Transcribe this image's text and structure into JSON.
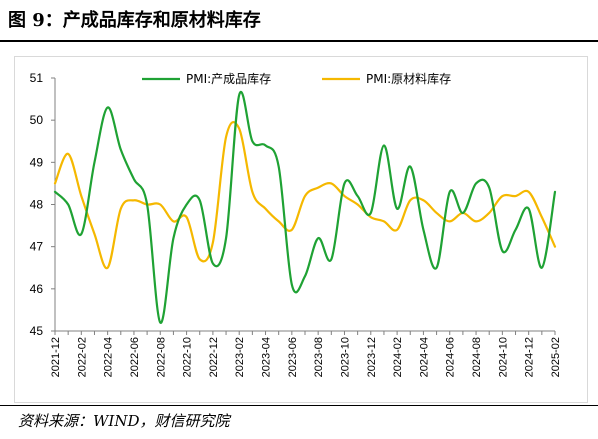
{
  "header": {
    "title": "图 9：产成品库存和原材料库存"
  },
  "footer": {
    "source": "资料来源：WIND，财信研究院"
  },
  "colors": {
    "finished": "#1fa234",
    "raw": "#f5b800",
    "axis": "#808080",
    "frame": "#d9d9d9"
  },
  "chart_data": {
    "type": "line",
    "title": "",
    "xlabel": "",
    "ylabel": "",
    "ylim": [
      45,
      51
    ],
    "yticks": [
      45,
      46,
      47,
      48,
      49,
      50,
      51
    ],
    "grid": false,
    "legend_position": "top",
    "categories": [
      "2021-12",
      "2022-01",
      "2022-02",
      "2022-03",
      "2022-04",
      "2022-05",
      "2022-06",
      "2022-07",
      "2022-08",
      "2022-09",
      "2022-10",
      "2022-11",
      "2022-12",
      "2023-01",
      "2023-02",
      "2023-03",
      "2023-04",
      "2023-05",
      "2023-06",
      "2023-07",
      "2023-08",
      "2023-09",
      "2023-10",
      "2023-11",
      "2023-12",
      "2024-01",
      "2024-02",
      "2024-03",
      "2024-04",
      "2024-05",
      "2024-06",
      "2024-07",
      "2024-08",
      "2024-09",
      "2024-10",
      "2024-11",
      "2024-12",
      "2025-01",
      "2025-02"
    ],
    "x_tick_labels": [
      "2021-12",
      "2022-02",
      "2022-04",
      "2022-06",
      "2022-08",
      "2022-10",
      "2022-12",
      "2023-02",
      "2023-04",
      "2023-06",
      "2023-08",
      "2023-10",
      "2023-12",
      "2024-02",
      "2024-04",
      "2024-06",
      "2024-08",
      "2024-10",
      "2024-12",
      "2025-02"
    ],
    "series": [
      {
        "name": "PMI:产成品库存",
        "color": "#1fa234",
        "values": [
          48.3,
          48.0,
          47.3,
          49.0,
          50.3,
          49.3,
          48.6,
          48.0,
          45.2,
          47.2,
          48.0,
          48.1,
          46.6,
          47.2,
          50.6,
          49.5,
          49.4,
          48.9,
          46.1,
          46.3,
          47.2,
          46.7,
          48.5,
          48.2,
          47.8,
          49.4,
          47.9,
          48.9,
          47.4,
          46.5,
          48.3,
          47.8,
          48.5,
          48.4,
          46.9,
          47.4,
          47.9,
          46.5,
          48.3
        ]
      },
      {
        "name": "PMI:原材料库存",
        "color": "#f5b800",
        "values": [
          48.5,
          49.2,
          48.2,
          47.3,
          46.5,
          47.9,
          48.1,
          48.0,
          48.0,
          47.6,
          47.7,
          46.7,
          47.1,
          49.6,
          49.8,
          48.3,
          47.9,
          47.6,
          47.4,
          48.2,
          48.4,
          48.5,
          48.2,
          48.0,
          47.7,
          47.6,
          47.4,
          48.1,
          48.1,
          47.8,
          47.6,
          47.8,
          47.6,
          47.8,
          48.2,
          48.2,
          48.3,
          47.7,
          47.0
        ]
      }
    ]
  }
}
